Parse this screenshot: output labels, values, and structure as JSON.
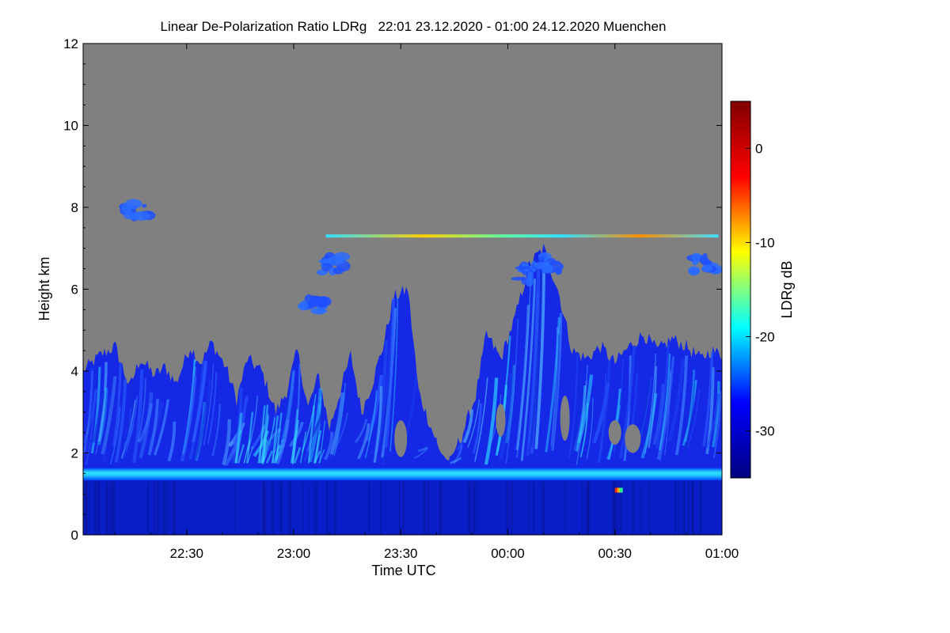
{
  "chart_data": {
    "type": "heatmap",
    "title": "Linear De-Polarization Ratio LDRg   22:01 23.12.2020 - 01:00 24.12.2020 Muenchen",
    "xlabel": "Time UTC",
    "ylabel": "Height km",
    "x_range_minutes": [
      -119,
      60
    ],
    "x_ticks": [
      {
        "minute": -90,
        "label": "22:30"
      },
      {
        "minute": -60,
        "label": "23:00"
      },
      {
        "minute": -30,
        "label": "23:30"
      },
      {
        "minute": 0,
        "label": "00:00"
      },
      {
        "minute": 30,
        "label": "00:30"
      },
      {
        "minute": 60,
        "label": "01:00"
      }
    ],
    "ylim": [
      0,
      12
    ],
    "y_ticks": [
      {
        "value": 0,
        "label": "0"
      },
      {
        "value": 2,
        "label": "2"
      },
      {
        "value": 4,
        "label": "4"
      },
      {
        "value": 6,
        "label": "6"
      },
      {
        "value": 8,
        "label": "8"
      },
      {
        "value": 10,
        "label": "10"
      },
      {
        "value": 12,
        "label": "12"
      }
    ],
    "colorbar": {
      "label": "LDRg dB",
      "range": [
        -35,
        5
      ],
      "ticks": [
        {
          "value": 0,
          "label": "0"
        },
        {
          "value": -10,
          "label": "-10"
        },
        {
          "value": -20,
          "label": "-20"
        },
        {
          "value": -30,
          "label": "-30"
        }
      ],
      "colormap": [
        "#000080",
        "#0000ff",
        "#00ffff",
        "#ffff00",
        "#ff0000",
        "#800000"
      ]
    },
    "no_data_color": "#808080",
    "cloud_top_km": [
      {
        "minute": -119,
        "top": 4.0
      },
      {
        "minute": -114,
        "top": 4.4
      },
      {
        "minute": -110,
        "top": 4.6
      },
      {
        "minute": -106,
        "top": 3.6
      },
      {
        "minute": -103,
        "top": 4.3
      },
      {
        "minute": -99,
        "top": 3.9
      },
      {
        "minute": -96,
        "top": 4.1
      },
      {
        "minute": -93,
        "top": 3.7
      },
      {
        "minute": -89,
        "top": 4.6
      },
      {
        "minute": -86,
        "top": 4.2
      },
      {
        "minute": -83,
        "top": 4.7
      },
      {
        "minute": -79,
        "top": 4.1
      },
      {
        "minute": -76,
        "top": 3.3
      },
      {
        "minute": -73,
        "top": 4.3
      },
      {
        "minute": -69,
        "top": 4.0
      },
      {
        "minute": -65,
        "top": 3.0
      },
      {
        "minute": -62,
        "top": 3.5
      },
      {
        "minute": -59,
        "top": 4.5
      },
      {
        "minute": -56,
        "top": 3.1
      },
      {
        "minute": -53,
        "top": 3.9
      },
      {
        "minute": -50,
        "top": 2.6
      },
      {
        "minute": -47,
        "top": 3.5
      },
      {
        "minute": -44,
        "top": 4.4
      },
      {
        "minute": -41,
        "top": 3.0
      },
      {
        "minute": -38,
        "top": 3.7
      },
      {
        "minute": -35,
        "top": 4.6
      },
      {
        "minute": -32,
        "top": 5.8
      },
      {
        "minute": -28,
        "top": 6.0
      },
      {
        "minute": -25,
        "top": 3.5
      },
      {
        "minute": -21,
        "top": 2.5
      },
      {
        "minute": -17,
        "top": 1.8
      },
      {
        "minute": -13,
        "top": 2.4
      },
      {
        "minute": -9,
        "top": 3.4
      },
      {
        "minute": -6,
        "top": 4.9
      },
      {
        "minute": -2,
        "top": 4.3
      },
      {
        "minute": 2,
        "top": 5.3
      },
      {
        "minute": 6,
        "top": 6.6
      },
      {
        "minute": 10,
        "top": 7.0
      },
      {
        "minute": 14,
        "top": 6.0
      },
      {
        "minute": 18,
        "top": 4.5
      },
      {
        "minute": 22,
        "top": 4.3
      },
      {
        "minute": 26,
        "top": 4.6
      },
      {
        "minute": 30,
        "top": 4.2
      },
      {
        "minute": 34,
        "top": 4.6
      },
      {
        "minute": 38,
        "top": 4.9
      },
      {
        "minute": 42,
        "top": 4.5
      },
      {
        "minute": 46,
        "top": 4.8
      },
      {
        "minute": 50,
        "top": 4.6
      },
      {
        "minute": 54,
        "top": 4.3
      },
      {
        "minute": 57,
        "top": 4.5
      },
      {
        "minute": 60,
        "top": 4.4
      }
    ],
    "boundary_layer_km": 1.45,
    "thin_layer_km": 7.3,
    "thin_layer_minutes": [
      -51,
      59
    ],
    "upper_patches": [
      {
        "minute": -49,
        "height": 6.6,
        "kind": "blue"
      },
      {
        "minute": -54,
        "height": 5.6,
        "kind": "blue"
      },
      {
        "minute": 4,
        "height": 6.4,
        "kind": "blue"
      },
      {
        "minute": 12,
        "height": 6.6,
        "kind": "blue"
      },
      {
        "minute": 55,
        "height": 6.6,
        "kind": "blue"
      },
      {
        "minute": -104,
        "height": 7.9,
        "kind": "blue"
      }
    ]
  }
}
